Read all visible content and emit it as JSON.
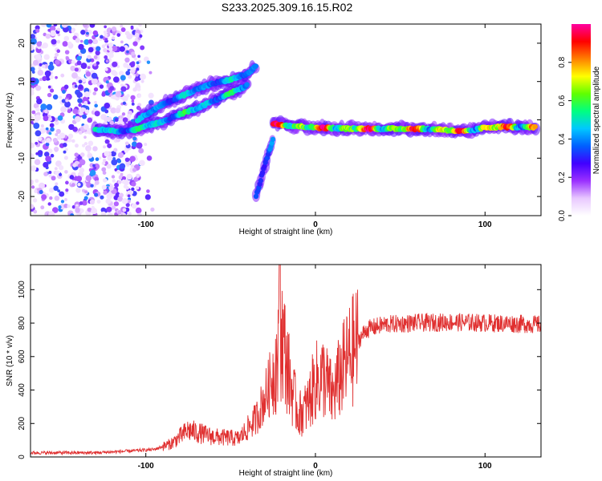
{
  "title": "S233.2025.309.16.15.R02",
  "chart_data": [
    {
      "type": "heatmap",
      "xlabel": "Height of straight line (km)",
      "ylabel": "Frequency (Hz)",
      "xlim": [
        -168,
        133
      ],
      "ylim": [
        -25,
        25
      ],
      "xticks": [
        -100,
        0,
        100
      ],
      "xtick_labels": [
        "-100",
        "0",
        "100"
      ],
      "yticks": [
        -20,
        -10,
        0,
        10,
        20
      ],
      "ytick_labels": [
        "-20",
        "-10",
        "0",
        "10",
        "20"
      ],
      "colorbar": {
        "label": "Normalized spectral amplitude",
        "range": [
          0,
          1
        ],
        "ticks": [
          0.0,
          0.2,
          0.4,
          0.6,
          0.8
        ],
        "tick_labels": [
          "0.0",
          "0.2",
          "0.4",
          "0.6",
          "0.8"
        ],
        "colormap": [
          "#ffffff",
          "#e8c8ff",
          "#9a30ff",
          "#4000ff",
          "#0060ff",
          "#00c8ff",
          "#00ff80",
          "#60ff00",
          "#ffff00",
          "#ff8000",
          "#ff0000",
          "#ff00a0"
        ]
      },
      "tracks": [
        {
          "name": "main-trace",
          "x": [
            -130,
            -115,
            -105,
            -100,
            -90,
            -80,
            -70,
            -60,
            -50,
            -40
          ],
          "y": [
            -2.5,
            -3,
            -2.5,
            -1.5,
            -0.5,
            1.5,
            3,
            5,
            7,
            9
          ],
          "amp": 0.45
        },
        {
          "name": "upper-trace",
          "x": [
            -105,
            -90,
            -80,
            -70,
            -60,
            -50,
            -40,
            -35
          ],
          "y": [
            0,
            4,
            6,
            8,
            9.5,
            10.5,
            12,
            14
          ],
          "amp": 0.35
        },
        {
          "name": "flat-trace",
          "x": [
            -25,
            -15,
            0,
            20,
            40,
            60,
            75,
            85,
            90,
            100,
            110,
            130
          ],
          "y": [
            -1,
            -1.5,
            -2,
            -2.3,
            -2.3,
            -2.3,
            -2.5,
            -3,
            -3,
            -2,
            -1.8,
            -2
          ],
          "amp": 0.9
        },
        {
          "name": "descending-trace",
          "x": [
            -35,
            -30,
            -25
          ],
          "y": [
            -20,
            -12,
            -5
          ],
          "amp": 0.3
        }
      ]
    },
    {
      "type": "line",
      "xlabel": "Height of straight line (km)",
      "ylabel": "SNR (10 * v/v)",
      "xlim": [
        -168,
        133
      ],
      "ylim": [
        0,
        1150
      ],
      "xticks": [
        -100,
        0,
        100
      ],
      "xtick_labels": [
        "-100",
        "0",
        "100"
      ],
      "yticks": [
        0,
        200,
        400,
        600,
        800,
        1000
      ],
      "ytick_labels": [
        "0",
        "200",
        "400",
        "600",
        "800",
        "1000"
      ],
      "color": "#e03030",
      "envelope": {
        "x": [
          -168,
          -130,
          -110,
          -95,
          -85,
          -75,
          -60,
          -45,
          -35,
          -28,
          -22,
          -20,
          -15,
          -10,
          -5,
          0,
          5,
          10,
          15,
          20,
          25,
          30,
          40,
          60,
          80,
          100,
          120,
          133
        ],
        "y": [
          25,
          25,
          35,
          45,
          80,
          160,
          120,
          110,
          230,
          400,
          600,
          750,
          450,
          250,
          300,
          450,
          480,
          360,
          500,
          600,
          680,
          750,
          780,
          790,
          795,
          790,
          785,
          780
        ]
      }
    }
  ]
}
